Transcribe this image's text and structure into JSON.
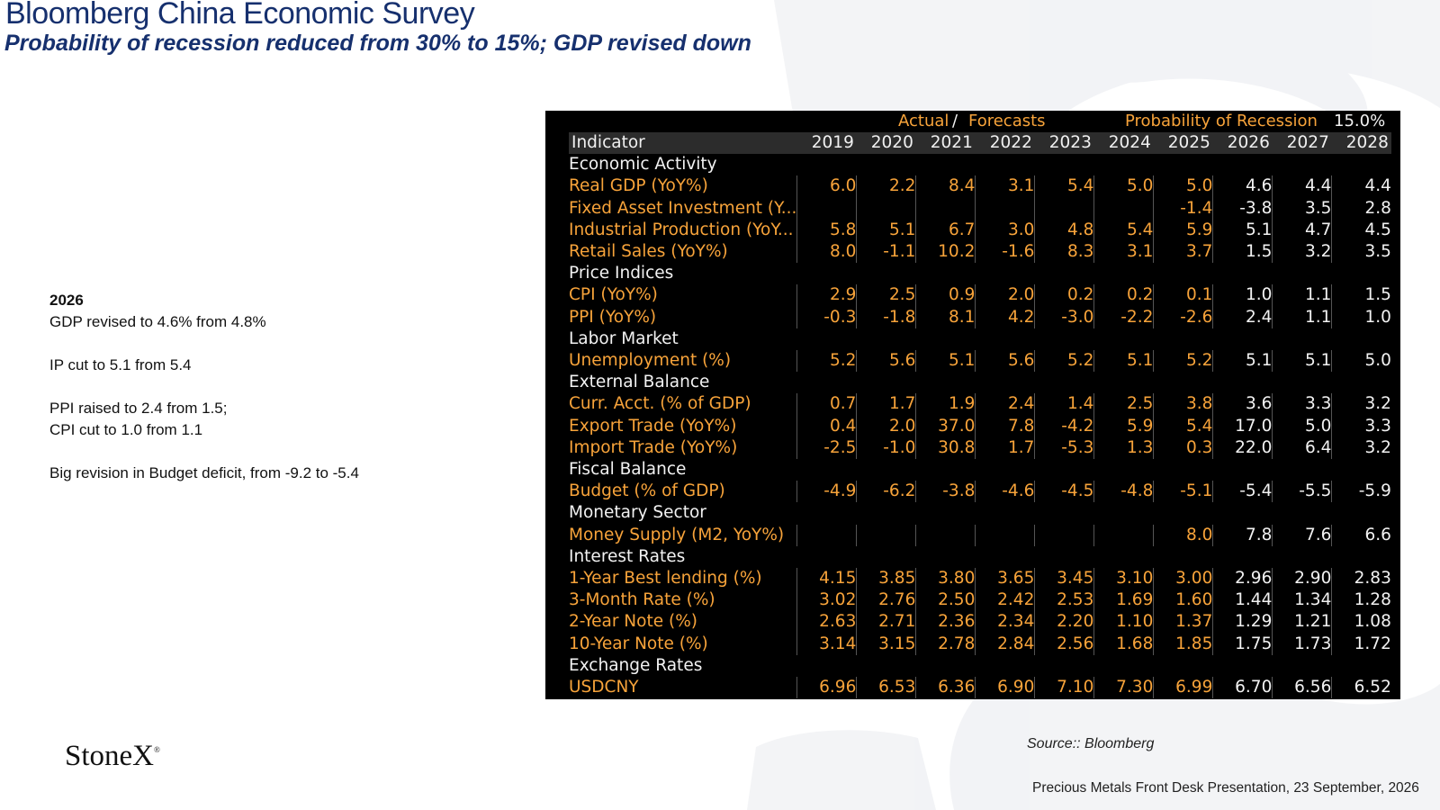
{
  "slide": {
    "title": "Bloomberg China Economic Survey",
    "subtitle": "Probability of recession reduced from 30% to 15%; GDP revised down",
    "source": "Source:: Bloomberg",
    "footer": "Precious Metals Front Desk Presentation, 23 September, 2026",
    "logo": "StoneX",
    "logo_mark": "®"
  },
  "notes": {
    "heading": "2026",
    "gdp": "GDP revised to 4.6% from 4.8%",
    "ip": "IP cut to 5.1 from 5.4",
    "ppi": "PPI raised to 2.4 from 1.5;",
    "cpi": "CPI cut to 1.0 from 1.1",
    "budget": "Big revision in Budget deficit, from -9.2 to -5.4"
  },
  "terminal": {
    "actual_label": "Actual",
    "slash": "/",
    "forecasts_label": "Forecasts",
    "prob_label": "Probability of Recession",
    "prob_value": "15.0%",
    "indicator_header": "Indicator",
    "years": [
      "2019",
      "2020",
      "2021",
      "2022",
      "2023",
      "2024",
      "2025",
      "2026",
      "2027",
      "2028"
    ],
    "rows": [
      {
        "section": "Economic Activity"
      },
      {
        "label": "Real GDP (YoY%)",
        "values": [
          "6.0",
          "2.2",
          "8.4",
          "3.1",
          "5.4",
          "5.0",
          "5.0",
          "4.6",
          "4.4",
          "4.4"
        ]
      },
      {
        "label": "Fixed Asset Investment (Y...",
        "values": [
          "",
          "",
          "",
          "",
          "",
          "",
          "-1.4",
          "-3.8",
          "3.5",
          "2.8"
        ]
      },
      {
        "label": "Industrial Production (YoY...",
        "values": [
          "5.8",
          "5.1",
          "6.7",
          "3.0",
          "4.8",
          "5.4",
          "5.9",
          "5.1",
          "4.7",
          "4.5"
        ]
      },
      {
        "label": "Retail Sales (YoY%)",
        "values": [
          "8.0",
          "-1.1",
          "10.2",
          "-1.6",
          "8.3",
          "3.1",
          "3.7",
          "1.5",
          "3.2",
          "3.5"
        ]
      },
      {
        "section": "Price Indices"
      },
      {
        "label": "CPI (YoY%)",
        "values": [
          "2.9",
          "2.5",
          "0.9",
          "2.0",
          "0.2",
          "0.2",
          "0.1",
          "1.0",
          "1.1",
          "1.5"
        ]
      },
      {
        "label": "PPI (YoY%)",
        "values": [
          "-0.3",
          "-1.8",
          "8.1",
          "4.2",
          "-3.0",
          "-2.2",
          "-2.6",
          "2.4",
          "1.1",
          "1.0"
        ]
      },
      {
        "section": "Labor Market"
      },
      {
        "label": "Unemployment (%)",
        "values": [
          "5.2",
          "5.6",
          "5.1",
          "5.6",
          "5.2",
          "5.1",
          "5.2",
          "5.1",
          "5.1",
          "5.0"
        ]
      },
      {
        "section": "External Balance"
      },
      {
        "label": "Curr. Acct. (% of GDP)",
        "values": [
          "0.7",
          "1.7",
          "1.9",
          "2.4",
          "1.4",
          "2.5",
          "3.8",
          "3.6",
          "3.3",
          "3.2"
        ]
      },
      {
        "label": "Export Trade (YoY%)",
        "values": [
          "0.4",
          "2.0",
          "37.0",
          "7.8",
          "-4.2",
          "5.9",
          "5.4",
          "17.0",
          "5.0",
          "3.3"
        ]
      },
      {
        "label": "Import Trade (YoY%)",
        "values": [
          "-2.5",
          "-1.0",
          "30.8",
          "1.7",
          "-5.3",
          "1.3",
          "0.3",
          "22.0",
          "6.4",
          "3.2"
        ]
      },
      {
        "section": "Fiscal Balance"
      },
      {
        "label": "Budget (% of GDP)",
        "values": [
          "-4.9",
          "-6.2",
          "-3.8",
          "-4.6",
          "-4.5",
          "-4.8",
          "-5.1",
          "-5.4",
          "-5.5",
          "-5.9"
        ]
      },
      {
        "section": "Monetary Sector"
      },
      {
        "label": "Money Supply (M2, YoY%)",
        "values": [
          "",
          "",
          "",
          "",
          "",
          "",
          "8.0",
          "7.8",
          "7.6",
          "6.6"
        ]
      },
      {
        "section": "Interest Rates"
      },
      {
        "label": "1-Year Best lending (%)",
        "values": [
          "4.15",
          "3.85",
          "3.80",
          "3.65",
          "3.45",
          "3.10",
          "3.00",
          "2.96",
          "2.90",
          "2.83"
        ]
      },
      {
        "label": "3-Month Rate (%)",
        "values": [
          "3.02",
          "2.76",
          "2.50",
          "2.42",
          "2.53",
          "1.69",
          "1.60",
          "1.44",
          "1.34",
          "1.28"
        ]
      },
      {
        "label": "2-Year Note (%)",
        "values": [
          "2.63",
          "2.71",
          "2.36",
          "2.34",
          "2.20",
          "1.10",
          "1.37",
          "1.29",
          "1.21",
          "1.08"
        ]
      },
      {
        "label": "10-Year Note (%)",
        "values": [
          "3.14",
          "3.15",
          "2.78",
          "2.84",
          "2.56",
          "1.68",
          "1.85",
          "1.75",
          "1.73",
          "1.72"
        ]
      },
      {
        "section": "Exchange Rates"
      },
      {
        "label": "USDCNY",
        "values": [
          "6.96",
          "6.53",
          "6.36",
          "6.90",
          "7.10",
          "7.30",
          "6.99",
          "6.70",
          "6.56",
          "6.52"
        ]
      }
    ]
  }
}
